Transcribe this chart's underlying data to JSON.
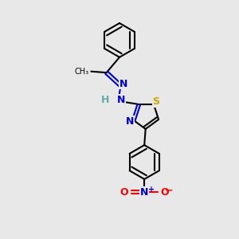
{
  "background_color": "#e8e8e8",
  "colors": {
    "C": "#000000",
    "N": "#0000cc",
    "S": "#ccaa00",
    "O": "#ff0000",
    "H": "#66aaaa",
    "bg": "#e8e8e8"
  },
  "lw": 1.5,
  "ring_r": 0.072
}
